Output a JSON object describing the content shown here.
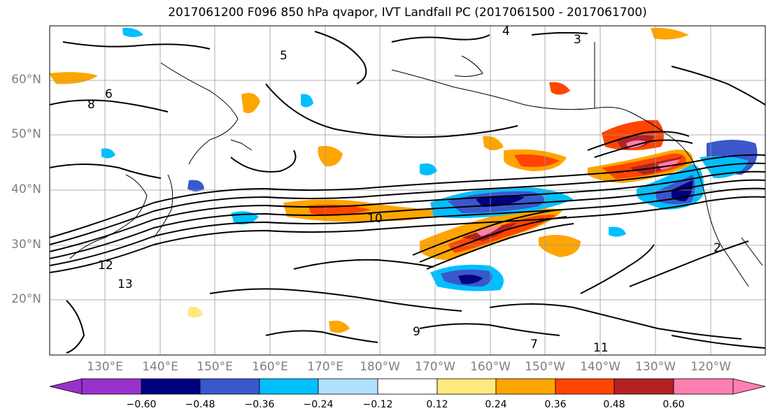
{
  "title": "2017061200 F096 850 hPa qvapor, IVT Landfall PC (2017061500 - 2017061700)",
  "map": {
    "lat_labels": [
      "60°N",
      "50°N",
      "40°N",
      "30°N",
      "20°N"
    ],
    "lon_labels": [
      "130°E",
      "140°E",
      "150°E",
      "160°E",
      "170°E",
      "180°W",
      "170°W",
      "160°W",
      "150°W",
      "140°W",
      "130°W",
      "120°W"
    ],
    "contour_labels": [
      "3",
      "4",
      "5",
      "6",
      "8",
      "10",
      "12",
      "13",
      "9",
      "7",
      "2",
      "11"
    ]
  },
  "colorbar": {
    "ticks": [
      "−0.60",
      "−0.48",
      "−0.36",
      "−0.24",
      "−0.12",
      "0.12",
      "0.24",
      "0.36",
      "0.48",
      "0.60"
    ],
    "colors": [
      "#9932cc",
      "#000080",
      "#3a57cc",
      "#00bfff",
      "#b0e2ff",
      "#ffffff",
      "#ffe97f",
      "#ffa500",
      "#ff4500",
      "#b22222",
      "#ff7fb0"
    ]
  }
}
